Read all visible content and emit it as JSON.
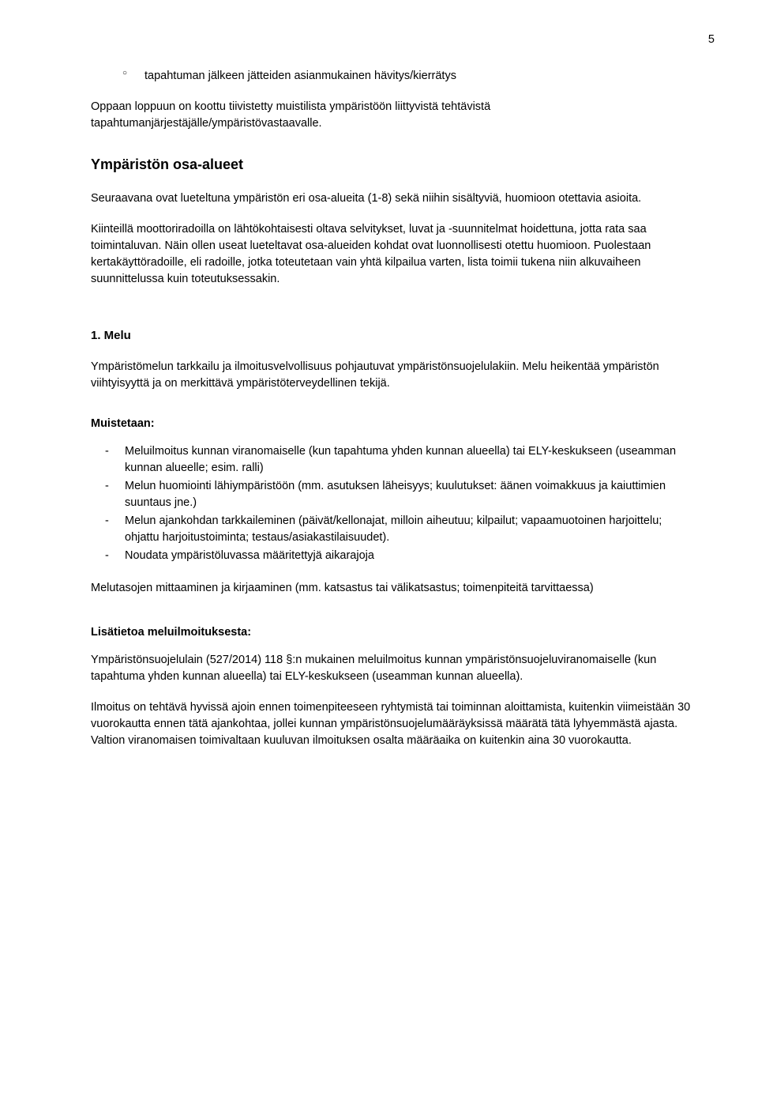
{
  "pageNumber": "5",
  "bullet1": "tapahtuman jälkeen jätteiden asianmukainen hävitys/kierrätys",
  "introPara": "Oppaan loppuun on koottu tiivistetty muistilista ympäristöön liittyvistä tehtävistä tapahtumanjärjestäjälle/ympäristövastaavalle.",
  "heading1": "Ympäristön osa-alueet",
  "para1": "Seuraavana ovat lueteltuna ympäristön eri osa-alueita (1-8) sekä niihin sisältyviä, huomioon otettavia asioita.",
  "para2": "Kiinteillä moottoriradoilla on lähtökohtaisesti oltava selvitykset, luvat ja -suunnitelmat hoidettuna, jotta rata saa toimintaluvan. Näin ollen useat lueteltavat osa-alueiden kohdat ovat luonnollisesti otettu huomioon. Puolestaan kertakäyttöradoille, eli radoille, jotka toteutetaan vain yhtä kilpailua varten, lista toimii tukena niin alkuvaiheen suunnittelussa kuin toteutuksessakin.",
  "heading2": "1. Melu",
  "meluPara": "Ympäristömelun tarkkailu ja ilmoitusvelvollisuus pohjautuvat ympäristönsuojelulakiin. Melu heikentää ympäristön viihtyisyyttä ja on merkittävä ympäristöterveydellinen tekijä.",
  "muistetaanLabel": "Muistetaan:",
  "muist1": "Meluilmoitus kunnan viranomaiselle (kun tapahtuma yhden kunnan alueella) tai ELY-keskukseen (useamman kunnan alueelle; esim. ralli)",
  "muist2": "Melun huomiointi lähiympäristöön (mm. asutuksen läheisyys; kuulutukset: äänen voimakkuus ja kaiuttimien suuntaus jne.)",
  "muist3": "Melun ajankohdan tarkkaileminen (päivät/kellonajat, milloin aiheutuu; kilpailut; vapaamuotoinen harjoittelu; ohjattu harjoitustoiminta; testaus/asiakastilaisuudet).",
  "muist4": "Noudata ympäristöluvassa määritettyjä aikarajoja",
  "melutasoPara": "Melutasojen mittaaminen ja kirjaaminen (mm. katsastus tai välikatsastus; toimenpiteitä tarvittaessa)",
  "lisatietoaLabel": "Lisätietoa meluilmoituksesta:",
  "lisaPara1": "Ympäristönsuojelulain (527/2014) 118 §:n mukainen meluilmoitus kunnan ympäristönsuojeluviranomaiselle (kun tapahtuma yhden kunnan alueella) tai ELY-keskukseen (useamman kunnan alueella).",
  "lisaPara2": "Ilmoitus on tehtävä hyvissä ajoin ennen toimenpiteeseen ryhtymistä tai toiminnan aloittamista, kuitenkin viimeistään 30 vuorokautta ennen tätä ajankohtaa, jollei kunnan ympäristönsuojelumääräyksissä määrätä tätä lyhyemmästä ajasta. Valtion viranomaisen toimivaltaan kuuluvan ilmoituksen osalta määräaika on kuitenkin aina 30 vuorokautta."
}
